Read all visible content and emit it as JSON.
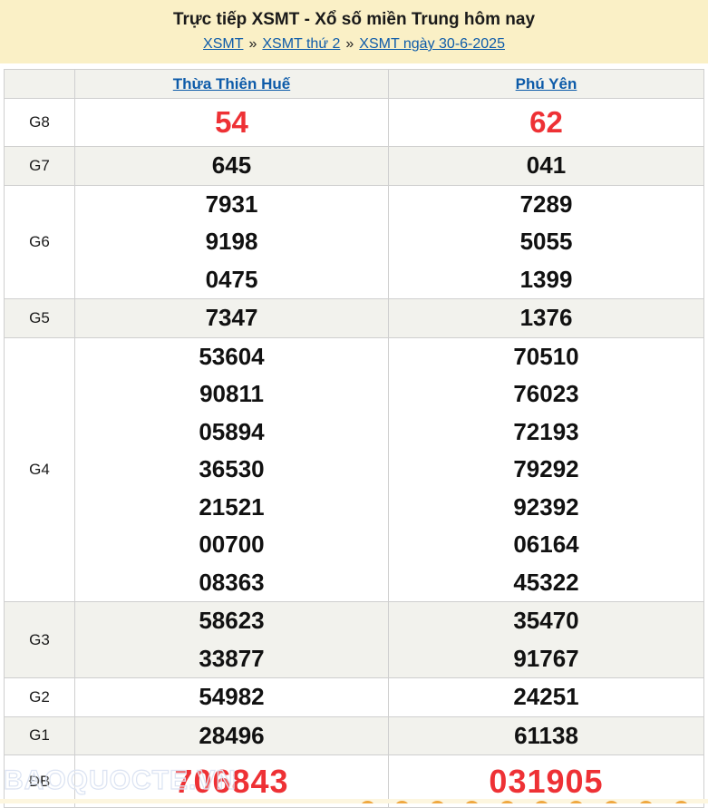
{
  "header": {
    "title": "Trực tiếp XSMT - Xổ số miền Trung hôm nay",
    "separator": "»",
    "breadcrumb": [
      {
        "label": "XSMT"
      },
      {
        "label": "XSMT thứ 2"
      },
      {
        "label": "XSMT ngày 30-6-2025"
      }
    ]
  },
  "table": {
    "columns": [
      "Thừa Thiên Huế",
      "Phú Yên"
    ],
    "rows": [
      {
        "prize": "G8",
        "highlight": true,
        "values": [
          [
            "54"
          ],
          [
            "62"
          ]
        ]
      },
      {
        "prize": "G7",
        "highlight": false,
        "values": [
          [
            "645"
          ],
          [
            "041"
          ]
        ]
      },
      {
        "prize": "G6",
        "highlight": false,
        "values": [
          [
            "7931",
            "9198",
            "0475"
          ],
          [
            "7289",
            "5055",
            "1399"
          ]
        ]
      },
      {
        "prize": "G5",
        "highlight": false,
        "values": [
          [
            "7347"
          ],
          [
            "1376"
          ]
        ]
      },
      {
        "prize": "G4",
        "highlight": false,
        "values": [
          [
            "53604",
            "90811",
            "05894",
            "36530",
            "21521",
            "00700",
            "08363"
          ],
          [
            "70510",
            "76023",
            "72193",
            "79292",
            "92392",
            "06164",
            "45322"
          ]
        ]
      },
      {
        "prize": "G3",
        "highlight": false,
        "values": [
          [
            "58623",
            "33877"
          ],
          [
            "35470",
            "91767"
          ]
        ]
      },
      {
        "prize": "G2",
        "highlight": false,
        "values": [
          [
            "54982"
          ],
          [
            "24251"
          ]
        ]
      },
      {
        "prize": "G1",
        "highlight": false,
        "values": [
          [
            "28496"
          ],
          [
            "61138"
          ]
        ]
      },
      {
        "prize": "ĐB",
        "highlight": true,
        "values": [
          [
            "706843"
          ],
          [
            "031905"
          ]
        ]
      }
    ]
  },
  "watermark": "BAOQUOCTE.VN",
  "colors": {
    "header_bg": "#faf0c6",
    "accent_red": "#ee3135",
    "link_blue": "#0d5ba9",
    "row_alt_bg": "#f2f2ed",
    "border": "#cfcfcf",
    "footer_bg": "#fdf6df",
    "ball_orange": "#efa840"
  }
}
